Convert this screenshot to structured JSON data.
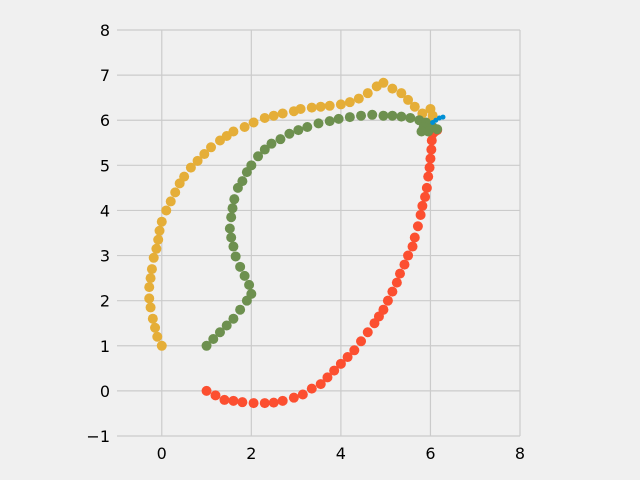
{
  "chart_data": {
    "type": "scatter",
    "title": "",
    "xlabel": "",
    "ylabel": "",
    "xlim": [
      -1,
      8
    ],
    "ylim": [
      -1,
      8
    ],
    "aspect": "equal",
    "grid": true,
    "xticks": [
      0,
      2,
      4,
      6,
      8
    ],
    "yticks": [
      -1,
      0,
      1,
      2,
      3,
      4,
      5,
      6,
      7,
      8
    ],
    "series": [
      {
        "color": "#fc4f30",
        "points": [
          [
            1.0,
            0.0
          ],
          [
            1.2,
            -0.1
          ],
          [
            1.4,
            -0.2
          ],
          [
            1.6,
            -0.22
          ],
          [
            1.8,
            -0.25
          ],
          [
            2.05,
            -0.27
          ],
          [
            2.3,
            -0.27
          ],
          [
            2.5,
            -0.26
          ],
          [
            2.7,
            -0.22
          ],
          [
            2.95,
            -0.15
          ],
          [
            3.15,
            -0.08
          ],
          [
            3.35,
            0.05
          ],
          [
            3.55,
            0.15
          ],
          [
            3.7,
            0.3
          ],
          [
            3.85,
            0.45
          ],
          [
            4.0,
            0.6
          ],
          [
            4.15,
            0.75
          ],
          [
            4.3,
            0.9
          ],
          [
            4.45,
            1.1
          ],
          [
            4.6,
            1.3
          ],
          [
            4.75,
            1.5
          ],
          [
            4.85,
            1.65
          ],
          [
            4.95,
            1.8
          ],
          [
            5.05,
            2.0
          ],
          [
            5.15,
            2.2
          ],
          [
            5.25,
            2.4
          ],
          [
            5.32,
            2.6
          ],
          [
            5.42,
            2.8
          ],
          [
            5.5,
            3.0
          ],
          [
            5.6,
            3.2
          ],
          [
            5.65,
            3.4
          ],
          [
            5.72,
            3.65
          ],
          [
            5.78,
            3.9
          ],
          [
            5.82,
            4.1
          ],
          [
            5.88,
            4.3
          ],
          [
            5.92,
            4.5
          ],
          [
            5.95,
            4.75
          ],
          [
            5.98,
            4.95
          ],
          [
            6.0,
            5.15
          ],
          [
            6.02,
            5.35
          ],
          [
            6.03,
            5.55
          ],
          [
            6.05,
            5.7
          ],
          [
            6.1,
            5.75
          ],
          [
            6.15,
            5.78
          ]
        ]
      },
      {
        "color": "#e5ae38",
        "points": [
          [
            0.0,
            1.0
          ],
          [
            -0.1,
            1.2
          ],
          [
            -0.15,
            1.4
          ],
          [
            -0.2,
            1.6
          ],
          [
            -0.25,
            1.85
          ],
          [
            -0.28,
            2.05
          ],
          [
            -0.28,
            2.3
          ],
          [
            -0.25,
            2.5
          ],
          [
            -0.22,
            2.7
          ],
          [
            -0.18,
            2.95
          ],
          [
            -0.12,
            3.15
          ],
          [
            -0.08,
            3.35
          ],
          [
            -0.05,
            3.55
          ],
          [
            0.0,
            3.75
          ],
          [
            0.1,
            4.0
          ],
          [
            0.2,
            4.2
          ],
          [
            0.3,
            4.4
          ],
          [
            0.4,
            4.6
          ],
          [
            0.5,
            4.75
          ],
          [
            0.65,
            4.95
          ],
          [
            0.8,
            5.1
          ],
          [
            0.95,
            5.25
          ],
          [
            1.1,
            5.4
          ],
          [
            1.3,
            5.55
          ],
          [
            1.45,
            5.65
          ],
          [
            1.6,
            5.75
          ],
          [
            1.85,
            5.85
          ],
          [
            2.05,
            5.95
          ],
          [
            2.3,
            6.05
          ],
          [
            2.5,
            6.1
          ],
          [
            2.7,
            6.15
          ],
          [
            2.95,
            6.2
          ],
          [
            3.1,
            6.25
          ],
          [
            3.35,
            6.28
          ],
          [
            3.55,
            6.3
          ],
          [
            3.75,
            6.32
          ],
          [
            4.0,
            6.35
          ],
          [
            4.2,
            6.4
          ],
          [
            4.4,
            6.48
          ],
          [
            4.6,
            6.6
          ],
          [
            4.8,
            6.75
          ],
          [
            4.95,
            6.83
          ],
          [
            5.15,
            6.7
          ],
          [
            5.35,
            6.6
          ],
          [
            5.5,
            6.45
          ],
          [
            5.65,
            6.3
          ],
          [
            5.82,
            6.15
          ],
          [
            6.0,
            6.25
          ],
          [
            6.05,
            6.1
          ],
          [
            5.98,
            5.95
          ]
        ]
      },
      {
        "color": "#6d904f",
        "points": [
          [
            1.0,
            1.0
          ],
          [
            1.15,
            1.15
          ],
          [
            1.3,
            1.3
          ],
          [
            1.45,
            1.45
          ],
          [
            1.6,
            1.6
          ],
          [
            1.75,
            1.8
          ],
          [
            1.9,
            2.0
          ],
          [
            2.0,
            2.15
          ],
          [
            1.95,
            2.35
          ],
          [
            1.85,
            2.55
          ],
          [
            1.75,
            2.75
          ],
          [
            1.65,
            2.98
          ],
          [
            1.6,
            3.2
          ],
          [
            1.55,
            3.4
          ],
          [
            1.52,
            3.6
          ],
          [
            1.55,
            3.85
          ],
          [
            1.58,
            4.05
          ],
          [
            1.62,
            4.25
          ],
          [
            1.7,
            4.5
          ],
          [
            1.8,
            4.65
          ],
          [
            1.9,
            4.85
          ],
          [
            2.0,
            5.0
          ],
          [
            2.15,
            5.2
          ],
          [
            2.3,
            5.35
          ],
          [
            2.45,
            5.48
          ],
          [
            2.65,
            5.58
          ],
          [
            2.85,
            5.7
          ],
          [
            3.05,
            5.78
          ],
          [
            3.25,
            5.85
          ],
          [
            3.5,
            5.93
          ],
          [
            3.75,
            5.98
          ],
          [
            3.95,
            6.03
          ],
          [
            4.2,
            6.07
          ],
          [
            4.45,
            6.1
          ],
          [
            4.7,
            6.12
          ],
          [
            4.95,
            6.1
          ],
          [
            5.15,
            6.1
          ],
          [
            5.35,
            6.08
          ],
          [
            5.55,
            6.05
          ],
          [
            5.75,
            6.0
          ],
          [
            5.9,
            5.95
          ],
          [
            5.85,
            5.85
          ],
          [
            6.05,
            5.85
          ],
          [
            6.15,
            5.8
          ],
          [
            5.95,
            5.75
          ],
          [
            5.8,
            5.75
          ]
        ]
      },
      {
        "color": "#008fd5",
        "points": [
          [
            6.05,
            5.95
          ],
          [
            6.12,
            6.0
          ],
          [
            6.2,
            6.05
          ],
          [
            6.28,
            6.07
          ]
        ]
      }
    ]
  }
}
